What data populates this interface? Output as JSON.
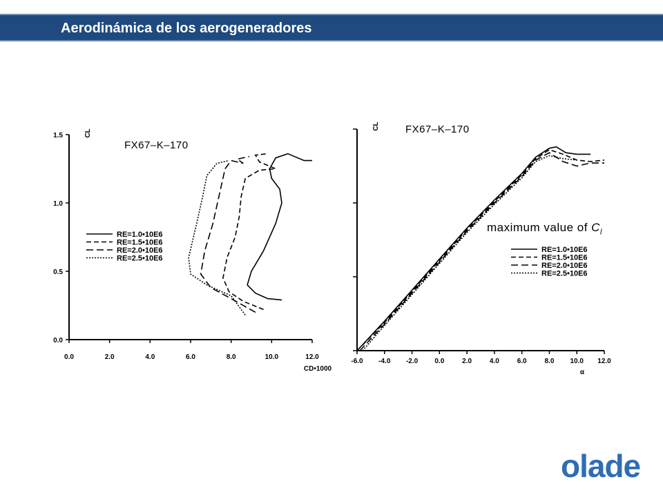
{
  "header": {
    "title": "Aerodinámica de los aerogeneradores"
  },
  "annotation": {
    "prefix": "maximum value of ",
    "symbol": "C",
    "subscript": "l"
  },
  "logo": {
    "text": "olade",
    "color": "#2f6db4"
  },
  "chart_data": [
    {
      "type": "line",
      "title": "FX67–K–170",
      "xlabel": "CD•1000",
      "ylabel": "CL",
      "xlim": [
        0,
        12
      ],
      "ylim": [
        0,
        1.5
      ],
      "x_ticks": [
        "0.0",
        "2.0",
        "4.0",
        "6.0",
        "8.0",
        "10.0",
        "12.0"
      ],
      "y_ticks": [
        "0.0",
        "0.5",
        "1.0",
        "1.5"
      ],
      "legend_position": "left",
      "series": [
        {
          "name": "RE=1.0•10E6",
          "dash": "solid",
          "x": [
            10.5,
            9.8,
            9.2,
            8.8,
            9.0,
            9.6,
            10.2,
            10.5,
            10.4,
            10.0,
            9.9,
            10.2,
            10.8,
            11.6,
            12.0
          ],
          "y": [
            0.29,
            0.3,
            0.34,
            0.4,
            0.5,
            0.65,
            0.85,
            1.0,
            1.1,
            1.18,
            1.25,
            1.33,
            1.36,
            1.31,
            1.31
          ]
        },
        {
          "name": "RE=1.5•10E6",
          "dash": "dashed",
          "x": [
            9.6,
            8.6,
            7.9,
            7.6,
            7.8,
            8.2,
            8.4,
            8.5,
            8.7,
            9.4,
            10.2,
            9.4,
            9.2,
            9.8
          ],
          "y": [
            0.22,
            0.28,
            0.35,
            0.45,
            0.6,
            0.75,
            0.9,
            1.05,
            1.18,
            1.24,
            1.25,
            1.3,
            1.35,
            1.36
          ]
        },
        {
          "name": "RE=2.0•10E6",
          "dash": "longdash",
          "x": [
            9.2,
            8.0,
            7.0,
            6.5,
            6.7,
            7.1,
            7.4,
            7.7,
            8.0,
            8.6,
            8.3,
            8.9
          ],
          "y": [
            0.2,
            0.3,
            0.38,
            0.48,
            0.65,
            0.85,
            1.05,
            1.25,
            1.31,
            1.29,
            1.32,
            1.34
          ]
        },
        {
          "name": "RE=2.5•10E6",
          "dash": "dotted",
          "x": [
            8.7,
            8.0,
            6.8,
            6.0,
            5.9,
            6.3,
            6.6,
            6.8,
            7.3,
            7.9
          ],
          "y": [
            0.18,
            0.32,
            0.4,
            0.48,
            0.6,
            0.85,
            1.05,
            1.2,
            1.29,
            1.31
          ]
        }
      ]
    },
    {
      "type": "line",
      "title": "FX67–K–170",
      "xlabel": "α",
      "ylabel": "CL",
      "xlim": [
        -6,
        12
      ],
      "ylim": [
        0,
        1.5
      ],
      "x_ticks": [
        "-6.0",
        "-4.0",
        "-2.0",
        "0.0",
        "2.0",
        "4.0",
        "6.0",
        "8.0",
        "10.0",
        "12.0"
      ],
      "legend_position": "bottom-right",
      "series": [
        {
          "name": "RE=1.0•10E6",
          "dash": "solid",
          "x": [
            -6.0,
            -4.0,
            -2.0,
            0.0,
            2.0,
            4.0,
            6.0,
            7.0,
            8.0,
            8.5,
            9.2,
            10.0,
            11.0
          ],
          "y": [
            0.0,
            0.2,
            0.41,
            0.62,
            0.83,
            1.02,
            1.2,
            1.31,
            1.37,
            1.38,
            1.34,
            1.33,
            1.33
          ]
        },
        {
          "name": "RE=1.5•10E6",
          "dash": "dashed",
          "x": [
            -6.0,
            -4.0,
            -2.0,
            0.0,
            2.0,
            4.0,
            6.0,
            7.0,
            8.0,
            9.0,
            10.0,
            11.0,
            12.0
          ],
          "y": [
            0.0,
            0.19,
            0.4,
            0.61,
            0.82,
            1.01,
            1.19,
            1.3,
            1.36,
            1.33,
            1.29,
            1.28,
            1.29
          ]
        },
        {
          "name": "RE=2.0•10E6",
          "dash": "longdash",
          "x": [
            -5.8,
            -4.0,
            -2.0,
            0.0,
            2.0,
            4.0,
            6.0,
            7.0,
            8.0,
            9.0,
            10.0,
            11.0,
            12.0
          ],
          "y": [
            0.0,
            0.18,
            0.39,
            0.6,
            0.81,
            1.0,
            1.18,
            1.29,
            1.34,
            1.28,
            1.25,
            1.27,
            1.27
          ]
        },
        {
          "name": "RE=2.5•10E6",
          "dash": "dotted",
          "x": [
            -5.6,
            -4.0,
            -2.0,
            0.0,
            2.0,
            4.0,
            6.0,
            7.0,
            8.0,
            9.0,
            10.0
          ],
          "y": [
            0.0,
            0.17,
            0.38,
            0.59,
            0.8,
            0.99,
            1.17,
            1.28,
            1.32,
            1.3,
            1.29
          ]
        }
      ]
    }
  ]
}
